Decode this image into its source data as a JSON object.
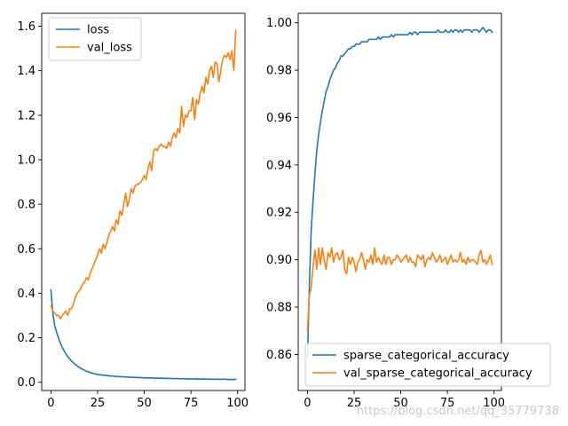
{
  "figure": {
    "watermark": "https://blog.csdn.net/qq_35779738"
  },
  "chart_data": [
    {
      "type": "line",
      "title": "",
      "xlabel": "",
      "ylabel": "",
      "xlim": [
        -4.95,
        103.95
      ],
      "ylim": [
        -0.037,
        1.658
      ],
      "xticks": [
        0,
        25,
        50,
        75,
        100
      ],
      "xtick_labels": [
        "0",
        "25",
        "50",
        "75",
        "100"
      ],
      "yticks": [
        0.0,
        0.2,
        0.4,
        0.6,
        0.8,
        1.0,
        1.2,
        1.4,
        1.6
      ],
      "ytick_labels": [
        "0.0",
        "0.2",
        "0.4",
        "0.6",
        "0.8",
        "1.0",
        "1.2",
        "1.4",
        "1.6"
      ],
      "grid": false,
      "legend": "top-left",
      "x": [
        0,
        1,
        2,
        3,
        4,
        5,
        6,
        7,
        8,
        9,
        10,
        11,
        12,
        13,
        14,
        15,
        16,
        17,
        18,
        19,
        20,
        21,
        22,
        23,
        24,
        25,
        26,
        27,
        28,
        29,
        30,
        31,
        32,
        33,
        34,
        35,
        36,
        37,
        38,
        39,
        40,
        41,
        42,
        43,
        44,
        45,
        46,
        47,
        48,
        49,
        50,
        51,
        52,
        53,
        54,
        55,
        56,
        57,
        58,
        59,
        60,
        61,
        62,
        63,
        64,
        65,
        66,
        67,
        68,
        69,
        70,
        71,
        72,
        73,
        74,
        75,
        76,
        77,
        78,
        79,
        80,
        81,
        82,
        83,
        84,
        85,
        86,
        87,
        88,
        89,
        90,
        91,
        92,
        93,
        94,
        95,
        96,
        97,
        98,
        99
      ],
      "series": [
        {
          "name": "loss",
          "color": "#1f77b4",
          "values": [
            0.415,
            0.31,
            0.255,
            0.225,
            0.2,
            0.177,
            0.158,
            0.142,
            0.128,
            0.116,
            0.105,
            0.096,
            0.088,
            0.08,
            0.074,
            0.068,
            0.063,
            0.058,
            0.054,
            0.05,
            0.047,
            0.044,
            0.041,
            0.039,
            0.037,
            0.035,
            0.034,
            0.033,
            0.032,
            0.031,
            0.03,
            0.029,
            0.028,
            0.028,
            0.027,
            0.026,
            0.026,
            0.025,
            0.025,
            0.024,
            0.024,
            0.023,
            0.023,
            0.022,
            0.022,
            0.022,
            0.021,
            0.021,
            0.021,
            0.02,
            0.02,
            0.02,
            0.019,
            0.02,
            0.019,
            0.019,
            0.018,
            0.019,
            0.018,
            0.018,
            0.018,
            0.017,
            0.018,
            0.017,
            0.017,
            0.017,
            0.016,
            0.017,
            0.016,
            0.016,
            0.016,
            0.016,
            0.015,
            0.016,
            0.015,
            0.015,
            0.015,
            0.015,
            0.014,
            0.015,
            0.014,
            0.015,
            0.014,
            0.014,
            0.014,
            0.014,
            0.013,
            0.014,
            0.013,
            0.014,
            0.013,
            0.013,
            0.013,
            0.014,
            0.013,
            0.012,
            0.013,
            0.012,
            0.013,
            0.013
          ]
        },
        {
          "name": "val_loss",
          "color": "#ff7f0e",
          "values": [
            0.345,
            0.32,
            0.31,
            0.3,
            0.3,
            0.285,
            0.3,
            0.31,
            0.32,
            0.3,
            0.33,
            0.33,
            0.35,
            0.38,
            0.4,
            0.41,
            0.42,
            0.44,
            0.45,
            0.47,
            0.46,
            0.49,
            0.51,
            0.53,
            0.55,
            0.57,
            0.6,
            0.58,
            0.62,
            0.6,
            0.63,
            0.66,
            0.68,
            0.7,
            0.68,
            0.73,
            0.71,
            0.77,
            0.75,
            0.8,
            0.85,
            0.79,
            0.82,
            0.87,
            0.85,
            0.88,
            0.89,
            0.89,
            0.9,
            0.91,
            0.93,
            0.91,
            0.96,
            0.99,
            0.95,
            1.04,
            1.05,
            1.04,
            1.06,
            1.07,
            1.06,
            1.06,
            1.05,
            1.08,
            1.06,
            1.1,
            1.12,
            1.1,
            1.14,
            1.12,
            1.24,
            1.15,
            1.2,
            1.19,
            1.22,
            1.22,
            1.28,
            1.18,
            1.27,
            1.25,
            1.3,
            1.33,
            1.3,
            1.37,
            1.34,
            1.4,
            1.42,
            1.37,
            1.44,
            1.43,
            1.35,
            1.4,
            1.45,
            1.47,
            1.46,
            1.48,
            1.45,
            1.49,
            1.4,
            1.58
          ]
        }
      ]
    },
    {
      "type": "line",
      "title": "",
      "xlabel": "",
      "ylabel": "",
      "xlim": [
        -4.95,
        103.95
      ],
      "ylim": [
        0.8448,
        1.004
      ],
      "xticks": [
        0,
        25,
        50,
        75,
        100
      ],
      "xtick_labels": [
        "0",
        "25",
        "50",
        "75",
        "100"
      ],
      "yticks": [
        0.86,
        0.88,
        0.9,
        0.92,
        0.94,
        0.96,
        0.98,
        1.0
      ],
      "ytick_labels": [
        "0.86",
        "0.88",
        "0.90",
        "0.92",
        "0.94",
        "0.96",
        "0.98",
        "1.00"
      ],
      "grid": false,
      "legend": "lower-right",
      "x": [
        0,
        1,
        2,
        3,
        4,
        5,
        6,
        7,
        8,
        9,
        10,
        11,
        12,
        13,
        14,
        15,
        16,
        17,
        18,
        19,
        20,
        21,
        22,
        23,
        24,
        25,
        26,
        27,
        28,
        29,
        30,
        31,
        32,
        33,
        34,
        35,
        36,
        37,
        38,
        39,
        40,
        41,
        42,
        43,
        44,
        45,
        46,
        47,
        48,
        49,
        50,
        51,
        52,
        53,
        54,
        55,
        56,
        57,
        58,
        59,
        60,
        61,
        62,
        63,
        64,
        65,
        66,
        67,
        68,
        69,
        70,
        71,
        72,
        73,
        74,
        75,
        76,
        77,
        78,
        79,
        80,
        81,
        82,
        83,
        84,
        85,
        86,
        87,
        88,
        89,
        90,
        91,
        92,
        93,
        94,
        95,
        96,
        97,
        98,
        99
      ],
      "series": [
        {
          "name": "sparse_categorical_accuracy",
          "color": "#1f77b4",
          "values": [
            0.858,
            0.888,
            0.912,
            0.925,
            0.936,
            0.946,
            0.953,
            0.958,
            0.963,
            0.967,
            0.971,
            0.973,
            0.976,
            0.978,
            0.98,
            0.981,
            0.983,
            0.984,
            0.986,
            0.986,
            0.987,
            0.988,
            0.989,
            0.989,
            0.99,
            0.99,
            0.991,
            0.991,
            0.991,
            0.992,
            0.992,
            0.992,
            0.992,
            0.993,
            0.993,
            0.993,
            0.993,
            0.993,
            0.994,
            0.993,
            0.994,
            0.994,
            0.994,
            0.994,
            0.994,
            0.995,
            0.994,
            0.995,
            0.995,
            0.995,
            0.995,
            0.995,
            0.995,
            0.995,
            0.995,
            0.996,
            0.995,
            0.996,
            0.996,
            0.995,
            0.996,
            0.996,
            0.996,
            0.996,
            0.996,
            0.996,
            0.996,
            0.996,
            0.996,
            0.996,
            0.997,
            0.996,
            0.996,
            0.996,
            0.997,
            0.996,
            0.996,
            0.997,
            0.996,
            0.997,
            0.997,
            0.996,
            0.997,
            0.996,
            0.997,
            0.997,
            0.997,
            0.997,
            0.996,
            0.997,
            0.997,
            0.997,
            0.996,
            0.997,
            0.998,
            0.997,
            0.996,
            0.997,
            0.997,
            0.996
          ]
        },
        {
          "name": "val_sparse_categorical_accuracy",
          "color": "#ff7f0e",
          "values": [
            0.87,
            0.885,
            0.888,
            0.897,
            0.904,
            0.896,
            0.905,
            0.898,
            0.905,
            0.9,
            0.896,
            0.903,
            0.901,
            0.905,
            0.899,
            0.902,
            0.903,
            0.9,
            0.901,
            0.904,
            0.896,
            0.894,
            0.901,
            0.898,
            0.901,
            0.899,
            0.895,
            0.899,
            0.9,
            0.903,
            0.9,
            0.896,
            0.9,
            0.899,
            0.902,
            0.898,
            0.905,
            0.899,
            0.901,
            0.899,
            0.898,
            0.902,
            0.898,
            0.901,
            0.901,
            0.898,
            0.9,
            0.9,
            0.902,
            0.901,
            0.899,
            0.9,
            0.901,
            0.902,
            0.899,
            0.901,
            0.899,
            0.899,
            0.897,
            0.902,
            0.901,
            0.9,
            0.902,
            0.897,
            0.9,
            0.901,
            0.9,
            0.903,
            0.901,
            0.899,
            0.9,
            0.902,
            0.899,
            0.9,
            0.901,
            0.898,
            0.9,
            0.902,
            0.899,
            0.9,
            0.899,
            0.9,
            0.903,
            0.899,
            0.9,
            0.898,
            0.901,
            0.899,
            0.9,
            0.9,
            0.899,
            0.898,
            0.902,
            0.904,
            0.899,
            0.9,
            0.898,
            0.9,
            0.902,
            0.898
          ]
        }
      ]
    }
  ]
}
